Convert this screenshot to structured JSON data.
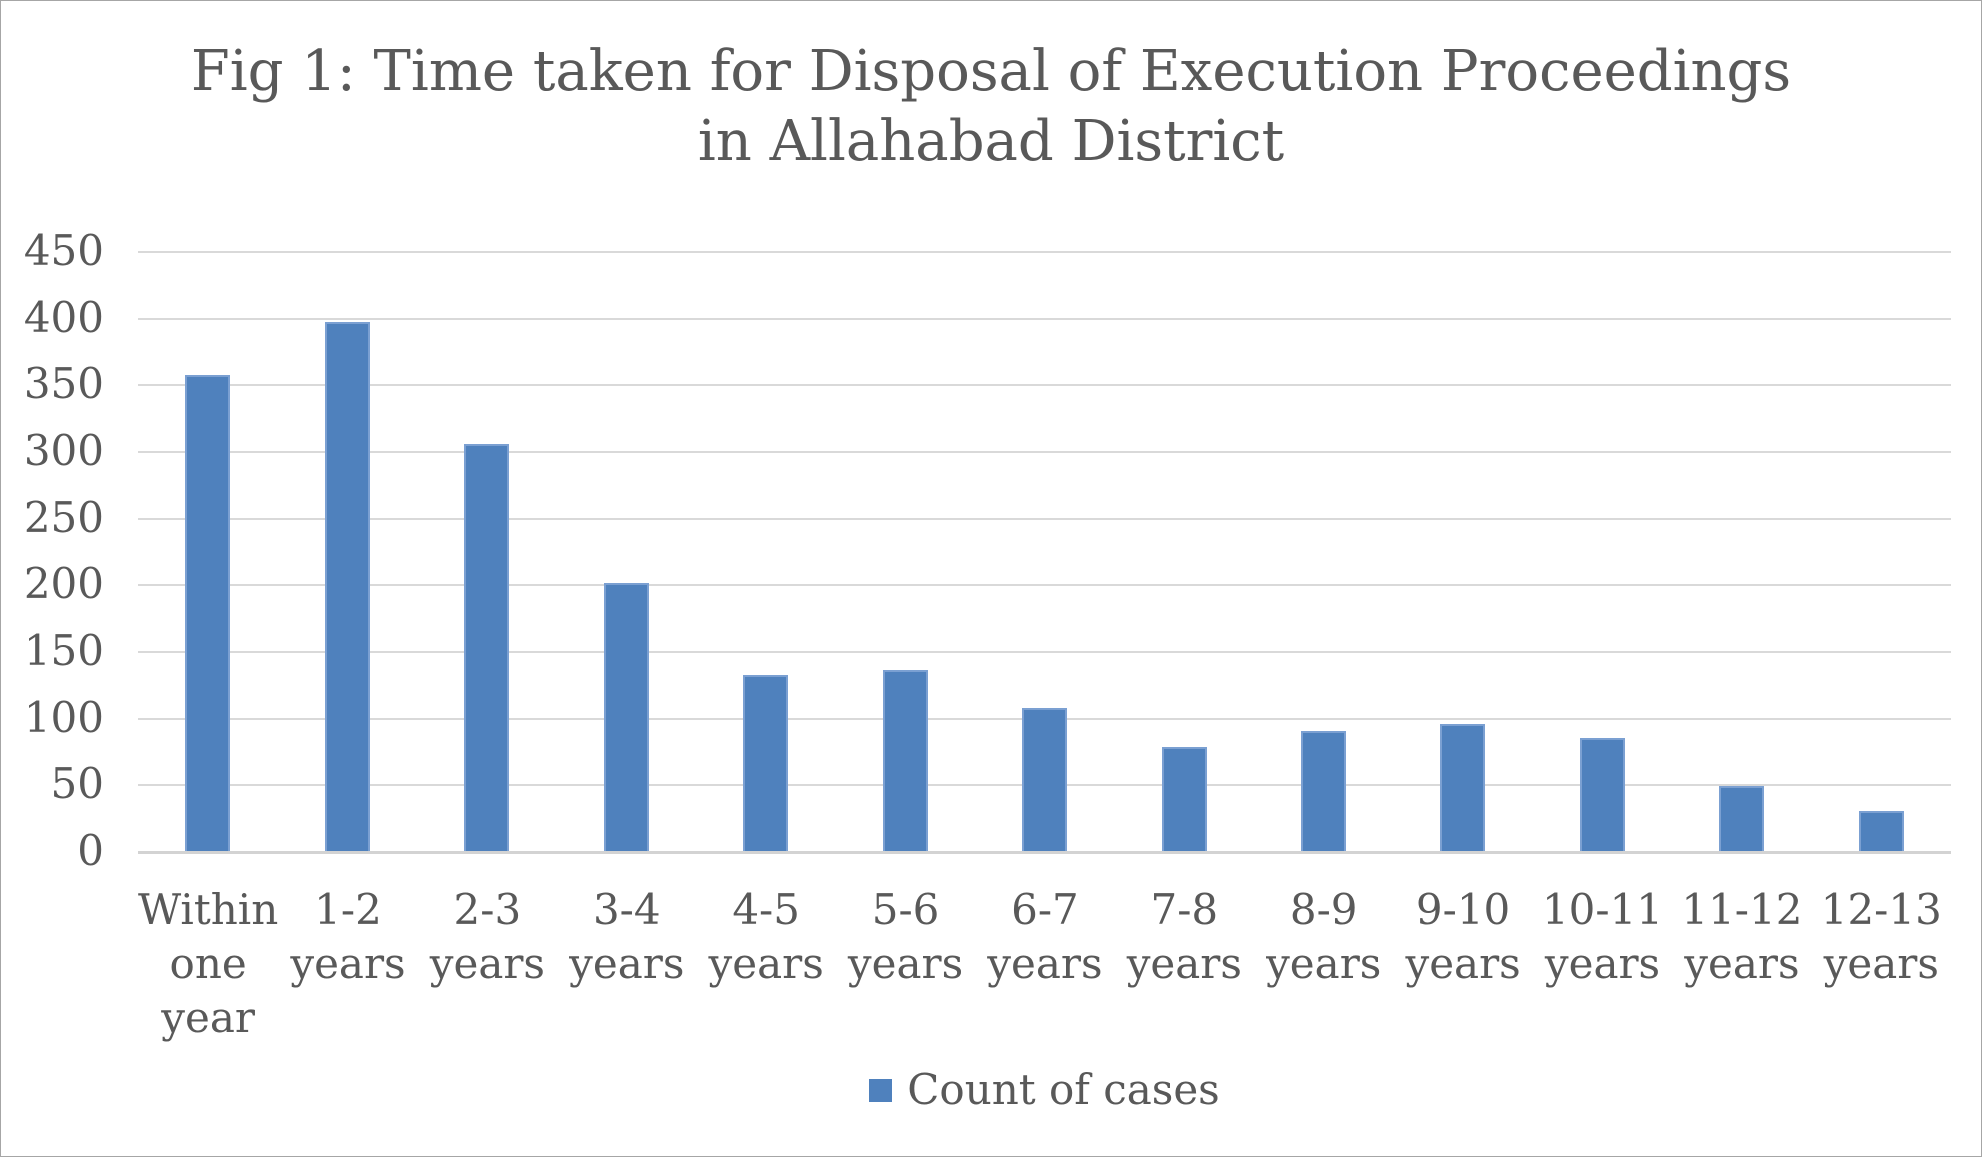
{
  "chart_data": {
    "type": "bar",
    "title": "Fig 1: Time taken for Disposal of Execution Proceedings in Allahabad District",
    "title_lines": [
      "Fig 1: Time taken for Disposal of Execution Proceedings",
      "in Allahabad District"
    ],
    "categories": [
      "Within one year",
      "1-2 years",
      "2-3 years",
      "3-4 years",
      "4-5 years",
      "5-6 years",
      "6-7 years",
      "7-8 years",
      "8-9 years",
      "9-10 years",
      "10-11 years",
      "11-12 years",
      "12-13 years"
    ],
    "series": [
      {
        "name": "Count of cases",
        "values": [
          357,
          397,
          305,
          201,
          132,
          136,
          107,
          78,
          90,
          95,
          85,
          49,
          30
        ]
      }
    ],
    "xlabel": "",
    "ylabel": "",
    "ylim": [
      0,
      450
    ],
    "yticks": [
      0,
      50,
      100,
      150,
      200,
      250,
      300,
      350,
      400,
      450
    ],
    "grid": true,
    "legend_position": "bottom"
  },
  "legend": {
    "label": "Count of cases"
  },
  "colors": {
    "bar": "#4f81bd",
    "bar_edge": "#7ba0d2",
    "grid": "#d9d9d9",
    "axis": "#d3d3d3",
    "text": "#595959",
    "frame": "#a6a6a6"
  }
}
